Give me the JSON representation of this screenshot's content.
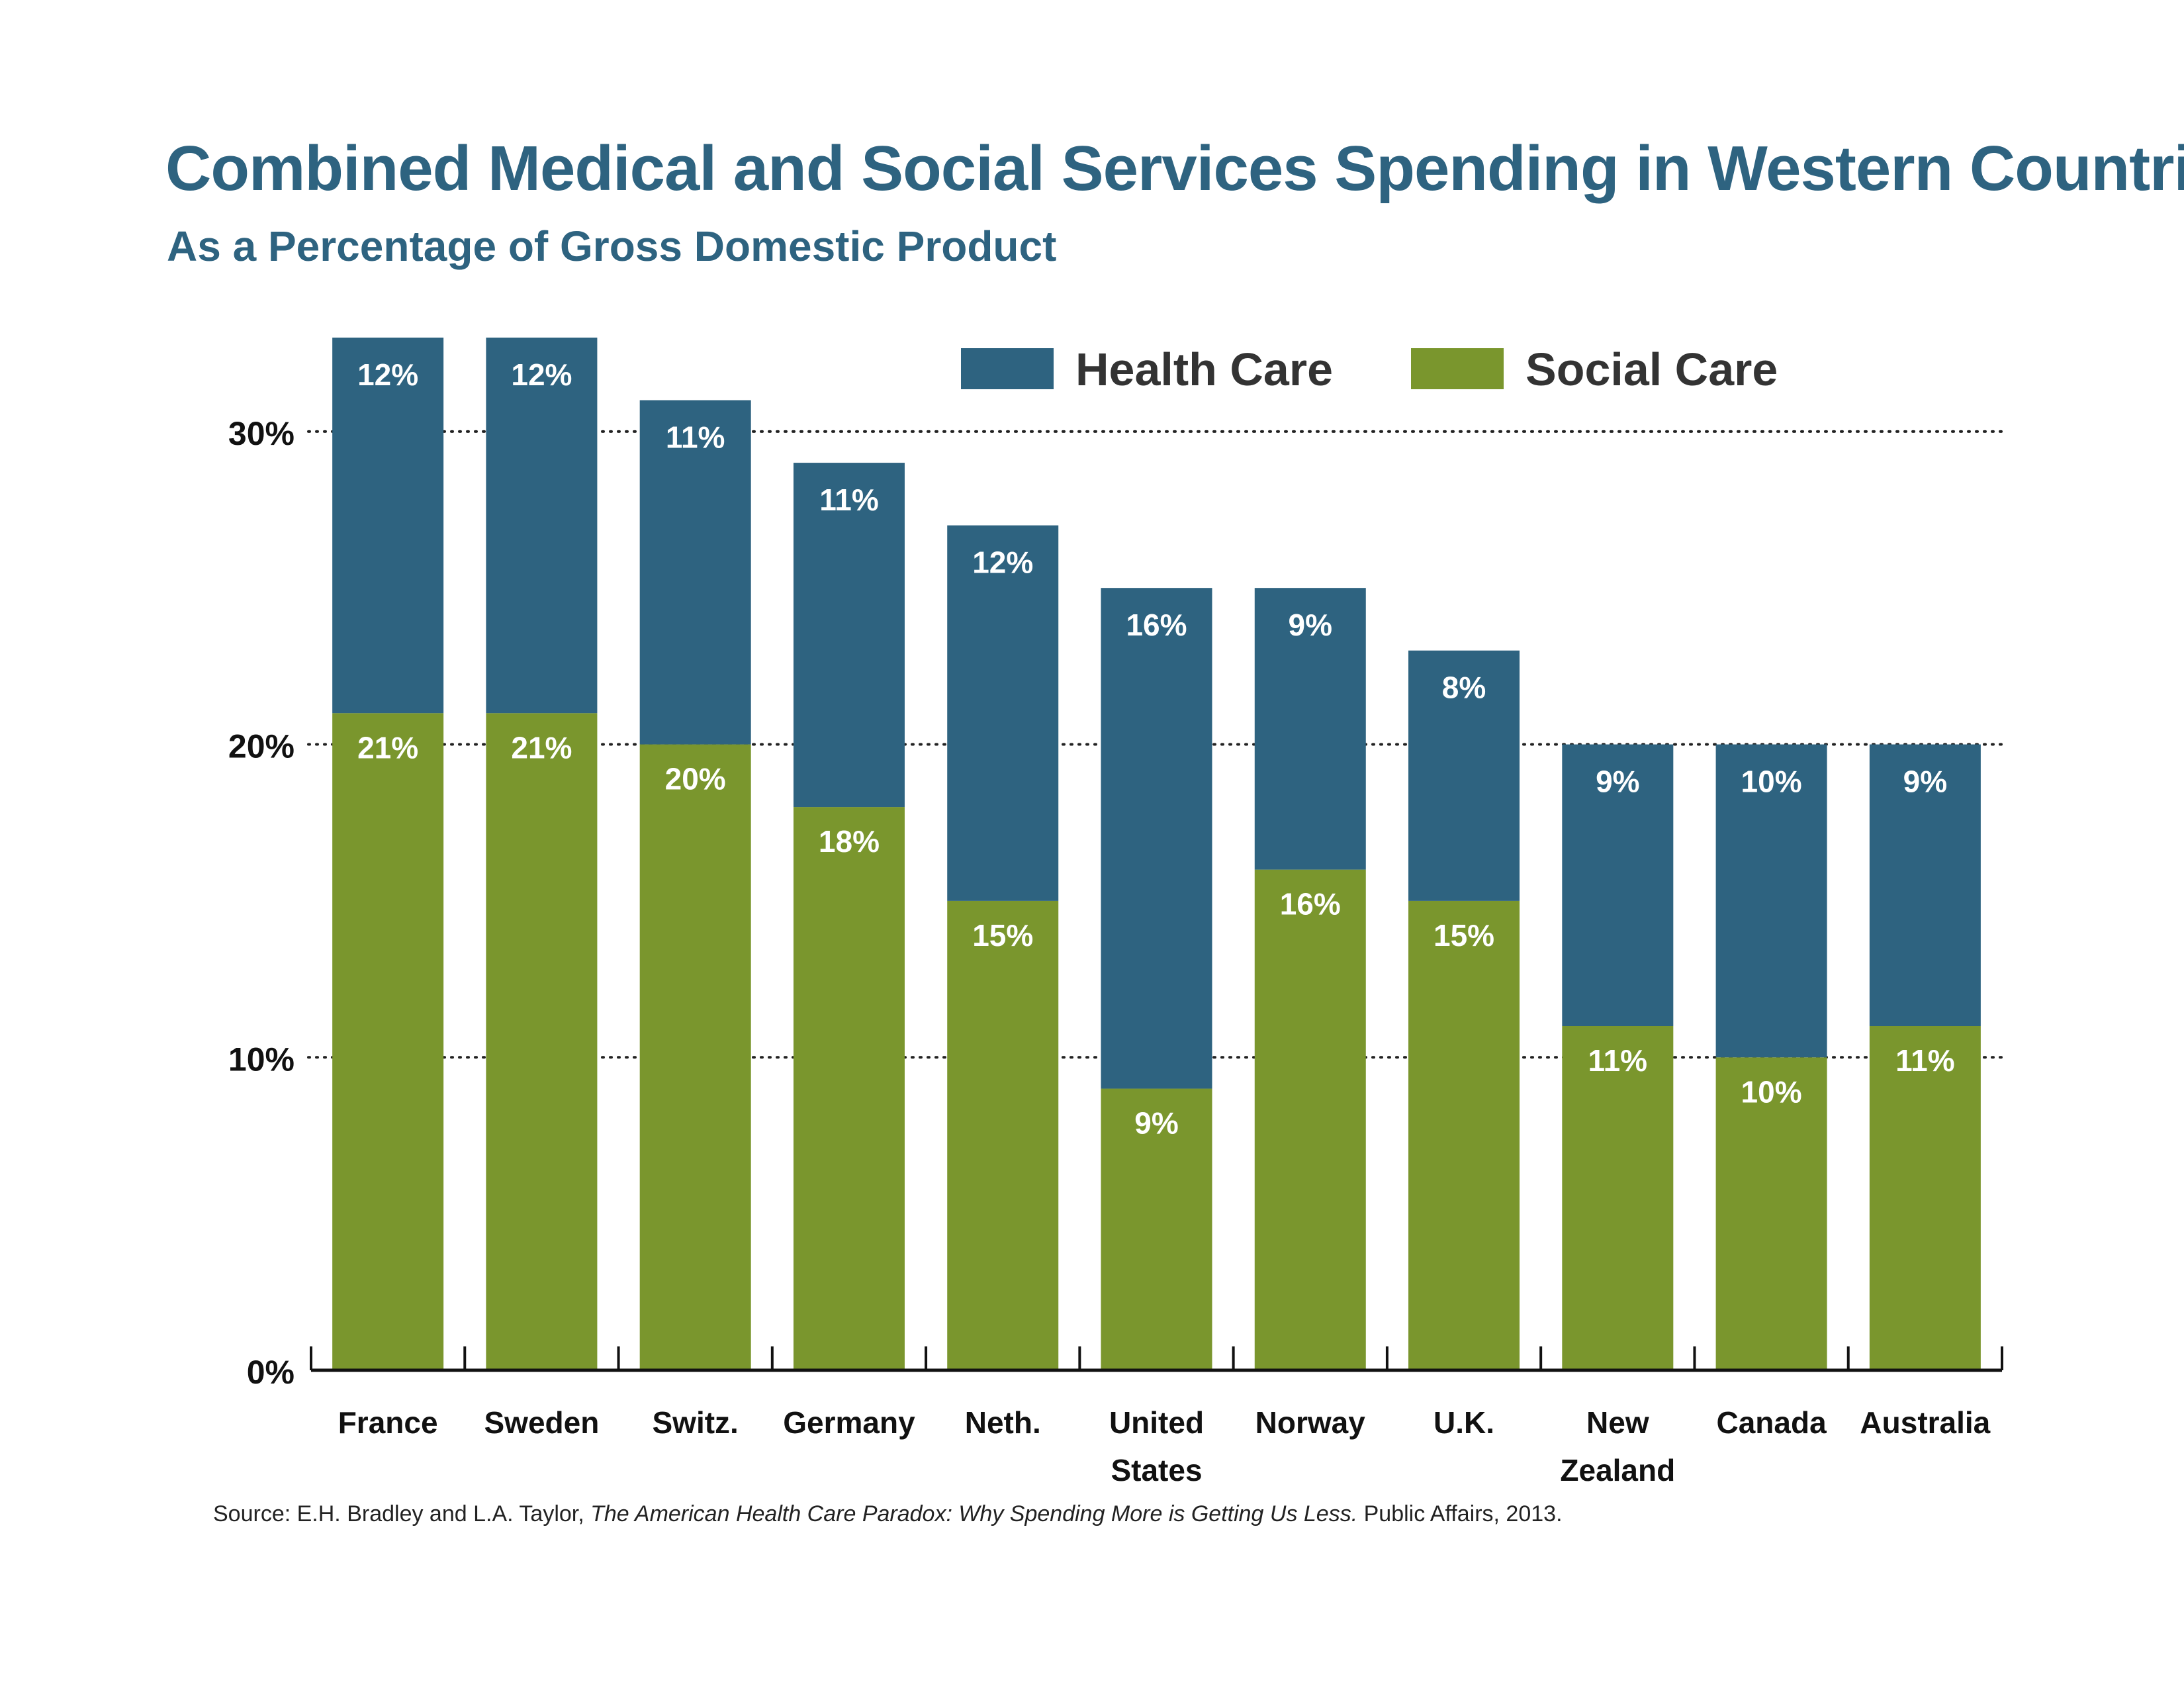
{
  "title": "Combined Medical and Social Services Spending in Western Countries",
  "subtitle": "As a Percentage of Gross Domestic Product",
  "colors": {
    "health": "#2e6380",
    "social": "#7a962d",
    "title": "#2e6380"
  },
  "source": {
    "prefix": "Source: E.H. Bradley and L.A. Taylor, ",
    "book": "The American Health Care Paradox: Why Spending More is Getting Us Less.",
    "suffix": " Public Affairs, 2013."
  },
  "chart_data": {
    "type": "bar",
    "stacked": true,
    "categories": [
      [
        "France"
      ],
      [
        "Sweden"
      ],
      [
        "Switz."
      ],
      [
        "Germany"
      ],
      [
        "Neth."
      ],
      [
        "United",
        "States"
      ],
      [
        "Norway"
      ],
      [
        "U.K."
      ],
      [
        "New",
        "Zealand"
      ],
      [
        "Canada"
      ],
      [
        "Australia"
      ]
    ],
    "series": [
      {
        "name": "Social Care",
        "values": [
          21,
          21,
          20,
          18,
          15,
          9,
          16,
          15,
          11,
          10,
          11
        ],
        "labels": [
          "21%",
          "21%",
          "20%",
          "18%",
          "15%",
          "9%",
          "16%",
          "15%",
          "11%",
          "10%",
          "11%"
        ]
      },
      {
        "name": "Health Care",
        "values": [
          12,
          12,
          11,
          11,
          12,
          16,
          9,
          8,
          9,
          10,
          9
        ],
        "labels": [
          "12%",
          "12%",
          "11%",
          "11%",
          "12%",
          "16%",
          "9%",
          "8%",
          "9%",
          "10%",
          "9%"
        ]
      }
    ],
    "ylim": [
      0,
      33
    ],
    "yticks": [
      0,
      10,
      20,
      30
    ],
    "ytick_labels": [
      "0%",
      "10%",
      "20%",
      "30%"
    ],
    "grid": "dotted at 10%, 20%, 30%",
    "legend": "top-right",
    "legend_order": [
      "Health Care",
      "Social Care"
    ]
  }
}
